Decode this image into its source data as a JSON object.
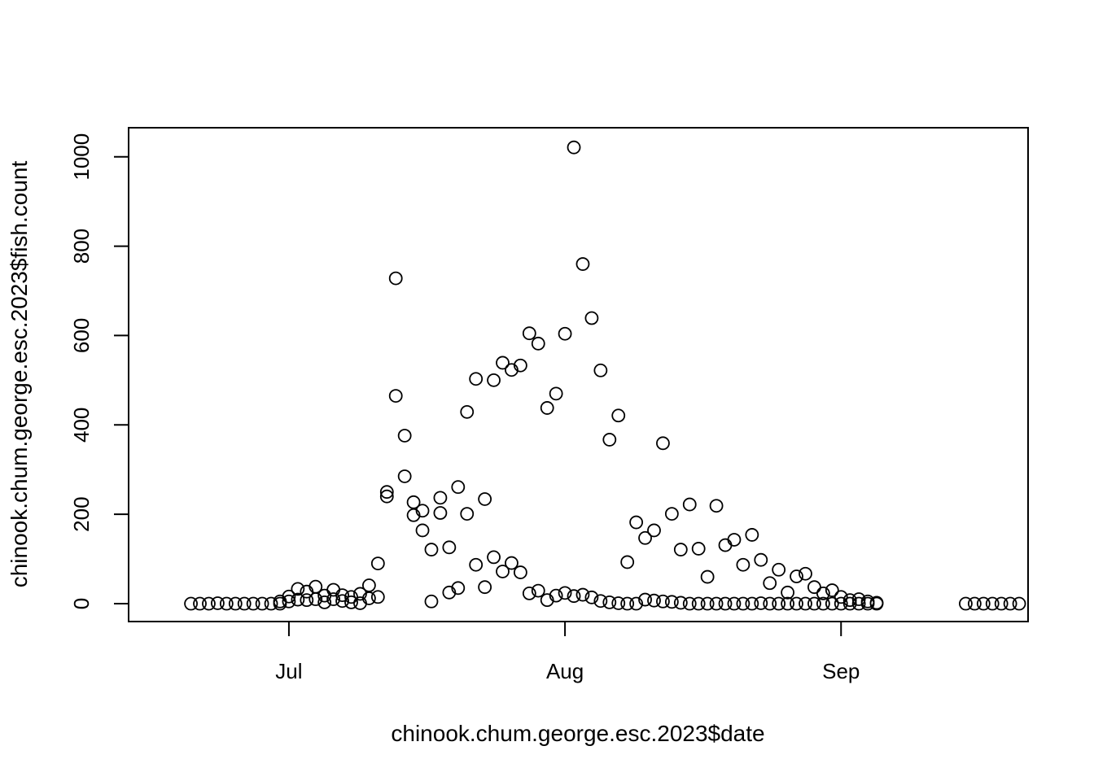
{
  "chart_data": {
    "type": "scatter",
    "xlabel": "chinook.chum.george.esc.2023$date",
    "ylabel": "chinook.chum.george.esc.2023$fish.count",
    "xlim": [
      "2023-06-13",
      "2023-09-22"
    ],
    "ylim": [
      -40,
      1065
    ],
    "x_ticks": [
      {
        "date": "2023-07-01",
        "label": "Jul"
      },
      {
        "date": "2023-08-01",
        "label": "Aug"
      },
      {
        "date": "2023-09-01",
        "label": "Sep"
      }
    ],
    "y_ticks": [
      0,
      200,
      400,
      600,
      800,
      1000
    ],
    "grid": false,
    "legend": "none",
    "marker": "open-circle",
    "points": [
      {
        "date": "2023-06-20",
        "count": 0
      },
      {
        "date": "2023-06-21",
        "count": 0
      },
      {
        "date": "2023-06-22",
        "count": 0
      },
      {
        "date": "2023-06-23",
        "count": 1
      },
      {
        "date": "2023-06-24",
        "count": 0
      },
      {
        "date": "2023-06-25",
        "count": 0
      },
      {
        "date": "2023-06-26",
        "count": 0
      },
      {
        "date": "2023-06-27",
        "count": 0
      },
      {
        "date": "2023-06-28",
        "count": 0
      },
      {
        "date": "2023-06-29",
        "count": 0
      },
      {
        "date": "2023-06-30",
        "count": 5
      },
      {
        "date": "2023-07-01",
        "count": 16
      },
      {
        "date": "2023-07-02",
        "count": 33
      },
      {
        "date": "2023-07-03",
        "count": 27
      },
      {
        "date": "2023-07-04",
        "count": 38
      },
      {
        "date": "2023-07-05",
        "count": 18
      },
      {
        "date": "2023-07-06",
        "count": 31
      },
      {
        "date": "2023-07-07",
        "count": 19
      },
      {
        "date": "2023-07-08",
        "count": 15
      },
      {
        "date": "2023-07-09",
        "count": 22
      },
      {
        "date": "2023-07-10",
        "count": 41
      },
      {
        "date": "2023-07-11",
        "count": 90
      },
      {
        "date": "2023-07-12",
        "count": 250
      },
      {
        "date": "2023-07-13",
        "count": 728
      },
      {
        "date": "2023-07-14",
        "count": 376
      },
      {
        "date": "2023-07-15",
        "count": 227
      },
      {
        "date": "2023-07-16",
        "count": 164
      },
      {
        "date": "2023-07-17",
        "count": 121
      },
      {
        "date": "2023-07-18",
        "count": 237
      },
      {
        "date": "2023-07-19",
        "count": 126
      },
      {
        "date": "2023-07-20",
        "count": 261
      },
      {
        "date": "2023-07-21",
        "count": 429
      },
      {
        "date": "2023-07-22",
        "count": 503
      },
      {
        "date": "2023-07-23",
        "count": 234
      },
      {
        "date": "2023-07-24",
        "count": 500
      },
      {
        "date": "2023-07-25",
        "count": 539
      },
      {
        "date": "2023-07-26",
        "count": 523
      },
      {
        "date": "2023-07-27",
        "count": 533
      },
      {
        "date": "2023-07-28",
        "count": 605
      },
      {
        "date": "2023-07-29",
        "count": 582
      },
      {
        "date": "2023-07-30",
        "count": 438
      },
      {
        "date": "2023-07-31",
        "count": 470
      },
      {
        "date": "2023-08-01",
        "count": 604
      },
      {
        "date": "2023-08-02",
        "count": 1021
      },
      {
        "date": "2023-08-03",
        "count": 760
      },
      {
        "date": "2023-08-04",
        "count": 639
      },
      {
        "date": "2023-08-05",
        "count": 522
      },
      {
        "date": "2023-08-06",
        "count": 367
      },
      {
        "date": "2023-08-07",
        "count": 421
      },
      {
        "date": "2023-08-08",
        "count": 93
      },
      {
        "date": "2023-08-09",
        "count": 182
      },
      {
        "date": "2023-08-10",
        "count": 147
      },
      {
        "date": "2023-08-11",
        "count": 164
      },
      {
        "date": "2023-08-12",
        "count": 359
      },
      {
        "date": "2023-08-13",
        "count": 201
      },
      {
        "date": "2023-08-14",
        "count": 121
      },
      {
        "date": "2023-08-15",
        "count": 222
      },
      {
        "date": "2023-08-16",
        "count": 123
      },
      {
        "date": "2023-08-17",
        "count": 60
      },
      {
        "date": "2023-08-18",
        "count": 219
      },
      {
        "date": "2023-08-19",
        "count": 131
      },
      {
        "date": "2023-08-20",
        "count": 143
      },
      {
        "date": "2023-08-21",
        "count": 87
      },
      {
        "date": "2023-08-22",
        "count": 154
      },
      {
        "date": "2023-08-23",
        "count": 98
      },
      {
        "date": "2023-08-24",
        "count": 46
      },
      {
        "date": "2023-08-25",
        "count": 76
      },
      {
        "date": "2023-08-26",
        "count": 25
      },
      {
        "date": "2023-08-27",
        "count": 61
      },
      {
        "date": "2023-08-28",
        "count": 67
      },
      {
        "date": "2023-08-29",
        "count": 37
      },
      {
        "date": "2023-08-30",
        "count": 23
      },
      {
        "date": "2023-08-31",
        "count": 30
      },
      {
        "date": "2023-09-01",
        "count": 15
      },
      {
        "date": "2023-09-02",
        "count": 8
      },
      {
        "date": "2023-09-03",
        "count": 10
      },
      {
        "date": "2023-09-04",
        "count": 5
      },
      {
        "date": "2023-09-05",
        "count": 2
      },
      {
        "date": "2023-06-30",
        "count": 0
      },
      {
        "date": "2023-07-01",
        "count": 5
      },
      {
        "date": "2023-07-02",
        "count": 9
      },
      {
        "date": "2023-07-03",
        "count": 8
      },
      {
        "date": "2023-07-04",
        "count": 10
      },
      {
        "date": "2023-07-05",
        "count": 3
      },
      {
        "date": "2023-07-06",
        "count": 10
      },
      {
        "date": "2023-07-07",
        "count": 6
      },
      {
        "date": "2023-07-08",
        "count": 3
      },
      {
        "date": "2023-07-09",
        "count": 1
      },
      {
        "date": "2023-07-10",
        "count": 12
      },
      {
        "date": "2023-07-11",
        "count": 15
      },
      {
        "date": "2023-07-12",
        "count": 240
      },
      {
        "date": "2023-07-13",
        "count": 465
      },
      {
        "date": "2023-07-14",
        "count": 285
      },
      {
        "date": "2023-07-15",
        "count": 198
      },
      {
        "date": "2023-07-16",
        "count": 208
      },
      {
        "date": "2023-07-17",
        "count": 5
      },
      {
        "date": "2023-07-18",
        "count": 203
      },
      {
        "date": "2023-07-19",
        "count": 25
      },
      {
        "date": "2023-07-20",
        "count": 35
      },
      {
        "date": "2023-07-21",
        "count": 201
      },
      {
        "date": "2023-07-22",
        "count": 87
      },
      {
        "date": "2023-07-23",
        "count": 37
      },
      {
        "date": "2023-07-24",
        "count": 104
      },
      {
        "date": "2023-07-25",
        "count": 72
      },
      {
        "date": "2023-07-26",
        "count": 91
      },
      {
        "date": "2023-07-27",
        "count": 70
      },
      {
        "date": "2023-07-28",
        "count": 23
      },
      {
        "date": "2023-07-29",
        "count": 29
      },
      {
        "date": "2023-07-30",
        "count": 8
      },
      {
        "date": "2023-07-31",
        "count": 18
      },
      {
        "date": "2023-08-01",
        "count": 24
      },
      {
        "date": "2023-08-02",
        "count": 17
      },
      {
        "date": "2023-08-03",
        "count": 20
      },
      {
        "date": "2023-08-04",
        "count": 14
      },
      {
        "date": "2023-08-05",
        "count": 6
      },
      {
        "date": "2023-08-06",
        "count": 3
      },
      {
        "date": "2023-08-07",
        "count": 1
      },
      {
        "date": "2023-08-08",
        "count": 0
      },
      {
        "date": "2023-08-09",
        "count": 0
      },
      {
        "date": "2023-08-10",
        "count": 9
      },
      {
        "date": "2023-08-11",
        "count": 7
      },
      {
        "date": "2023-08-12",
        "count": 5
      },
      {
        "date": "2023-08-13",
        "count": 4
      },
      {
        "date": "2023-08-14",
        "count": 2
      },
      {
        "date": "2023-08-15",
        "count": 0
      },
      {
        "date": "2023-08-16",
        "count": 0
      },
      {
        "date": "2023-08-17",
        "count": 0
      },
      {
        "date": "2023-08-18",
        "count": 0
      },
      {
        "date": "2023-08-19",
        "count": 0
      },
      {
        "date": "2023-08-20",
        "count": 0
      },
      {
        "date": "2023-08-21",
        "count": 0
      },
      {
        "date": "2023-08-22",
        "count": 0
      },
      {
        "date": "2023-08-23",
        "count": 1
      },
      {
        "date": "2023-08-24",
        "count": 0
      },
      {
        "date": "2023-08-25",
        "count": 0
      },
      {
        "date": "2023-08-26",
        "count": 0
      },
      {
        "date": "2023-08-27",
        "count": 0
      },
      {
        "date": "2023-08-28",
        "count": 0
      },
      {
        "date": "2023-08-29",
        "count": 0
      },
      {
        "date": "2023-08-30",
        "count": 0
      },
      {
        "date": "2023-08-31",
        "count": 0
      },
      {
        "date": "2023-09-01",
        "count": 0
      },
      {
        "date": "2023-09-02",
        "count": 0
      },
      {
        "date": "2023-09-03",
        "count": 0
      },
      {
        "date": "2023-09-04",
        "count": 0
      },
      {
        "date": "2023-09-05",
        "count": 0
      },
      {
        "date": "2023-09-15",
        "count": 0
      },
      {
        "date": "2023-09-16",
        "count": 0
      },
      {
        "date": "2023-09-17",
        "count": 0
      },
      {
        "date": "2023-09-18",
        "count": 0
      },
      {
        "date": "2023-09-19",
        "count": 0
      },
      {
        "date": "2023-09-20",
        "count": 0
      },
      {
        "date": "2023-09-21",
        "count": 0
      }
    ]
  }
}
